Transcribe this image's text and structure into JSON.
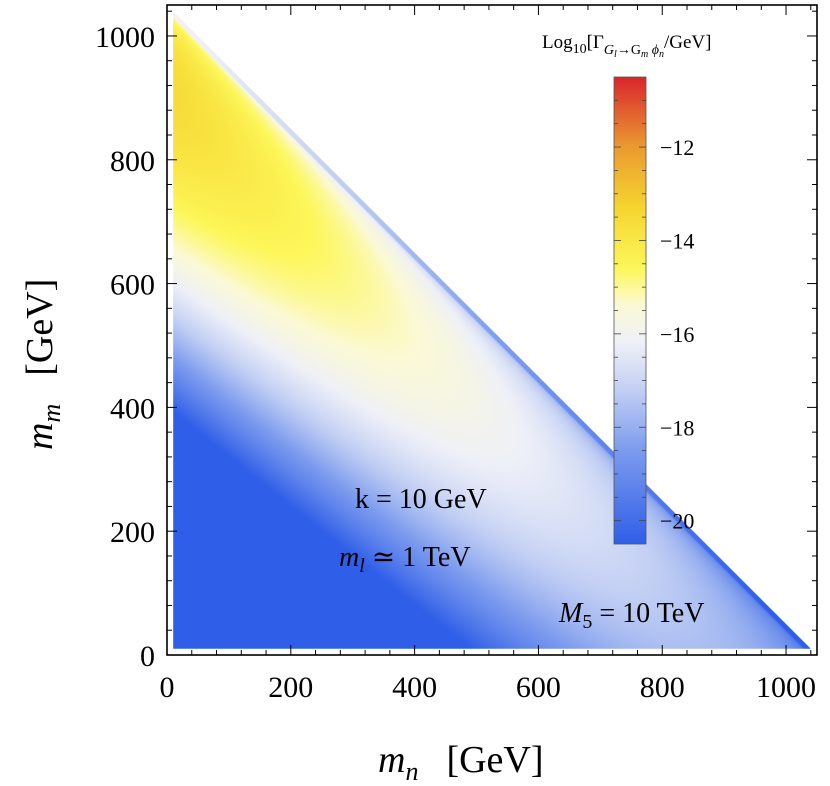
{
  "chart_data": {
    "type": "heatmap",
    "title": "",
    "xlabel": {
      "symbol": "m",
      "sub": "n",
      "unit": "[GeV]"
    },
    "ylabel": {
      "symbol": "m",
      "sub": "m",
      "unit": "[GeV]"
    },
    "xlim": [
      0,
      1050
    ],
    "ylim": [
      0,
      1050
    ],
    "x_ticks": [
      0,
      200,
      400,
      600,
      800,
      1000
    ],
    "y_ticks": [
      0,
      200,
      400,
      600,
      800,
      1000
    ],
    "x_tick_labels": [
      "0",
      "200",
      "400",
      "600",
      "800",
      "1000"
    ],
    "y_tick_labels": [
      "0",
      "200",
      "400",
      "600",
      "800",
      "1000"
    ],
    "region": "kinematically allowed triangle m_n + m_m < m_l, m_l ≃ 1040 GeV",
    "region_vertices": [
      [
        10,
        10
      ],
      [
        10,
        1040
      ],
      [
        1040,
        10
      ]
    ],
    "colorbar": {
      "title": {
        "prefix": "Log",
        "base": "10",
        "open": "[Γ",
        "sub_main": "G",
        "sub_l": "l",
        "arrow": "→G",
        "sub_m": "m",
        "phi": " ϕ",
        "sub_n": "n",
        "close": "/GeV]"
      },
      "range": [
        -20.5,
        -10.5
      ],
      "ticks": [
        -12,
        -14,
        -16,
        -18,
        -20
      ],
      "tick_labels": [
        "−12",
        "−14",
        "−16",
        "−18",
        "−20"
      ],
      "colors": [
        {
          "value": -20.5,
          "color": "#2f5ee8"
        },
        {
          "value": -18.5,
          "color": "#7c9bee"
        },
        {
          "value": -17.2,
          "color": "#c2cff4"
        },
        {
          "value": -16.2,
          "color": "#eef0f8"
        },
        {
          "value": -15.4,
          "color": "#fbf9d6"
        },
        {
          "value": -14.6,
          "color": "#fdf75a"
        },
        {
          "value": -13.3,
          "color": "#f5d52f"
        },
        {
          "value": -12.0,
          "color": "#ea9a30"
        },
        {
          "value": -10.5,
          "color": "#d9252d"
        }
      ]
    },
    "annotations": [
      {
        "id": "k",
        "text_main": "k = 10 GeV"
      },
      {
        "id": "ml",
        "symbol": "m",
        "sub": "l",
        "rest": " ≃ 1 TeV"
      },
      {
        "id": "M5",
        "symbol": "M",
        "sub": "5",
        "rest": " = 10 TeV"
      }
    ]
  }
}
